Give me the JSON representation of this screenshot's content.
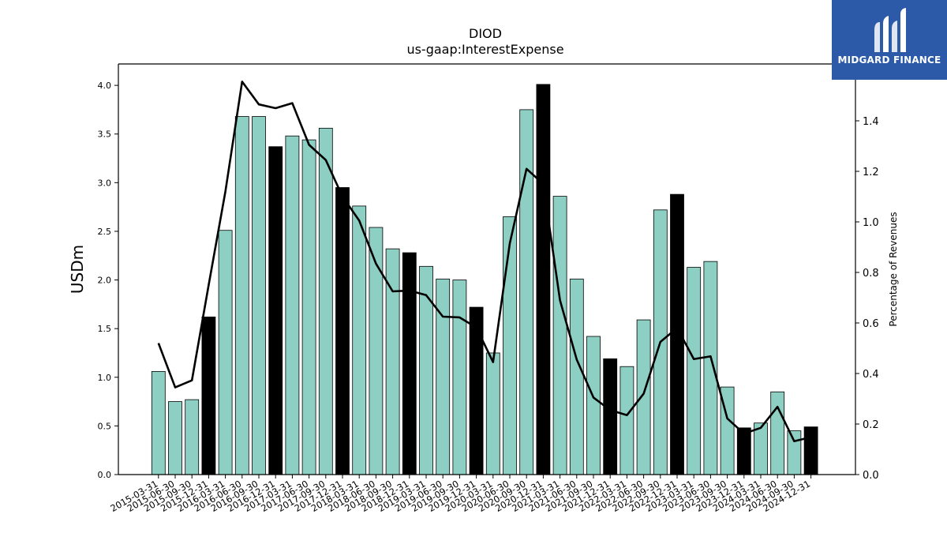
{
  "chart_data": {
    "type": "bar",
    "title": "DIOD",
    "subtitle": "us-gaap:InterestExpense",
    "ylabel": "USDm",
    "y2label": "Percentage of Revenues",
    "ylim": [
      0,
      4.22
    ],
    "y2lim": [
      0,
      1.625
    ],
    "yticks": [
      "0.0",
      "0.5",
      "1.0",
      "1.5",
      "2.0",
      "2.5",
      "3.0",
      "3.5",
      "4.0"
    ],
    "y2ticks": [
      "0.0",
      "0.2",
      "0.4",
      "0.6",
      "0.8",
      "1.0",
      "1.2",
      "1.4"
    ],
    "categories": [
      "2015-03-31",
      "2015-06-30",
      "2015-09-30",
      "2015-12-31",
      "2016-03-31",
      "2016-06-30",
      "2016-09-30",
      "2016-12-31",
      "2017-03-31",
      "2017-06-30",
      "2017-09-30",
      "2017-12-31",
      "2018-03-31",
      "2018-06-30",
      "2018-09-30",
      "2018-12-31",
      "2019-03-31",
      "2019-06-30",
      "2019-09-30",
      "2019-12-31",
      "2020-03-31",
      "2020-06-30",
      "2020-09-30",
      "2020-12-31",
      "2021-03-31",
      "2021-06-30",
      "2021-09-30",
      "2021-12-31",
      "2022-03-31",
      "2022-06-30",
      "2022-09-30",
      "2022-12-31",
      "2023-03-31",
      "2023-06-30",
      "2023-09-30",
      "2023-12-31",
      "2024-03-31",
      "2024-06-30",
      "2024-09-30",
      "2024-12-31"
    ],
    "series": [
      {
        "kind": "bar",
        "values": [
          1.06,
          0.75,
          0.77,
          1.62,
          2.51,
          3.68,
          3.68,
          3.37,
          3.48,
          3.44,
          3.56,
          2.95,
          2.76,
          2.54,
          2.32,
          2.28,
          2.14,
          2.01,
          2.0,
          1.72,
          1.25,
          2.65,
          3.75,
          4.01,
          2.86,
          2.01,
          1.42,
          1.19,
          1.11,
          1.59,
          2.72,
          2.88,
          2.13,
          2.19,
          0.9,
          0.48,
          0.53,
          0.85,
          0.45,
          0.49
        ],
        "color": "#8ecfc4",
        "highlight_color": "#000000",
        "highlight_categories": [
          "2015-12-31",
          "2016-12-31",
          "2017-12-31",
          "2018-12-31",
          "2019-12-31",
          "2020-12-31",
          "2021-12-31",
          "2022-12-31",
          "2023-12-31",
          "2024-12-31"
        ]
      },
      {
        "kind": "line",
        "axis": "right",
        "values": [
          0.52,
          0.345,
          0.373,
          0.75,
          1.12,
          1.555,
          1.465,
          1.45,
          1.47,
          1.305,
          1.245,
          1.1,
          1.005,
          0.835,
          0.725,
          0.728,
          0.71,
          0.625,
          0.622,
          0.582,
          0.445,
          0.915,
          1.21,
          1.15,
          0.69,
          0.455,
          0.305,
          0.255,
          0.235,
          0.32,
          0.525,
          0.58,
          0.457,
          0.468,
          0.222,
          0.162,
          0.185,
          0.268,
          0.132,
          0.148
        ],
        "color": "#000000"
      }
    ],
    "grid": false
  },
  "logo": {
    "text": "MIDGARD FINANCE",
    "color": "#2c5aa8"
  }
}
